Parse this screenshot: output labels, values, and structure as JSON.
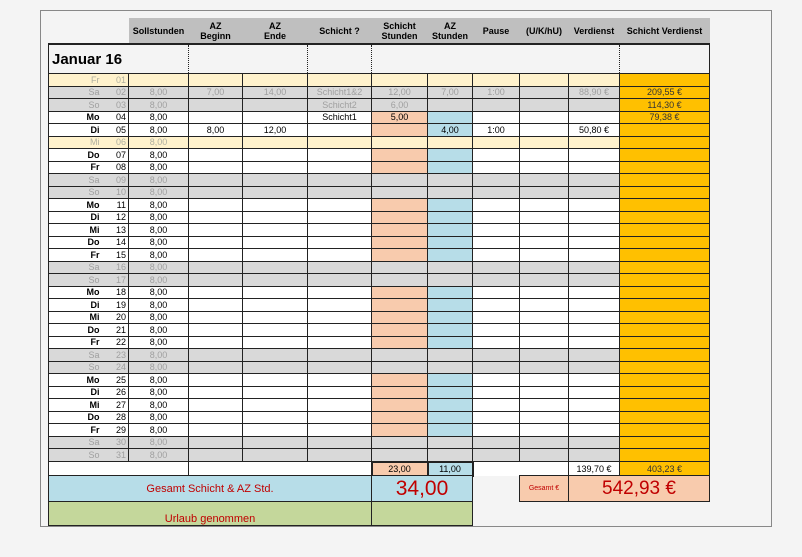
{
  "headers": [
    "",
    "Sollstunden",
    "AZ\nBeginn",
    "AZ\nEnde",
    "Schicht ?",
    "Schicht\nStunden",
    "AZ\nStunden",
    "Pause",
    "(U/K/hU)",
    "Verdienst",
    "Schicht Verdienst"
  ],
  "title": "Januar 16",
  "rows": [
    {
      "day": "Fr",
      "num": "01",
      "type": "hol",
      "soll": "",
      "beg": "",
      "end": "",
      "schicht": "",
      "ss": "",
      "az": "",
      "pause": "",
      "uk": "",
      "verd": "",
      "sv": ""
    },
    {
      "day": "Sa",
      "num": "02",
      "type": "we",
      "soll": "8,00",
      "beg": "7,00",
      "end": "14,00",
      "schicht": "Schicht1&2",
      "ss": "12,00",
      "az": "7,00",
      "pause": "1:00",
      "uk": "",
      "verd": "88,90 €",
      "sv": "209,55 €"
    },
    {
      "day": "So",
      "num": "03",
      "type": "we",
      "soll": "8,00",
      "beg": "",
      "end": "",
      "schicht": "Schicht2",
      "ss": "6,00",
      "az": "",
      "pause": "",
      "uk": "",
      "verd": "",
      "sv": "114,30 €"
    },
    {
      "day": "Mo",
      "num": "04",
      "type": "wd",
      "soll": "8,00",
      "beg": "",
      "end": "",
      "schicht": "Schicht1",
      "ss": "5,00",
      "az": "",
      "pause": "",
      "uk": "",
      "verd": "",
      "sv": "79,38 €"
    },
    {
      "day": "Di",
      "num": "05",
      "type": "wd",
      "soll": "8,00",
      "beg": "8,00",
      "end": "12,00",
      "schicht": "",
      "ss": "",
      "az": "4,00",
      "pause": "1:00",
      "uk": "",
      "verd": "50,80 €",
      "sv": ""
    },
    {
      "day": "Mi",
      "num": "06",
      "type": "hol",
      "soll": "8,00"
    },
    {
      "day": "Do",
      "num": "07",
      "type": "wd",
      "soll": "8,00"
    },
    {
      "day": "Fr",
      "num": "08",
      "type": "wd",
      "soll": "8,00"
    },
    {
      "day": "Sa",
      "num": "09",
      "type": "we",
      "soll": "8,00"
    },
    {
      "day": "So",
      "num": "10",
      "type": "we",
      "soll": "8,00"
    },
    {
      "day": "Mo",
      "num": "11",
      "type": "wd",
      "soll": "8,00"
    },
    {
      "day": "Di",
      "num": "12",
      "type": "wd",
      "soll": "8,00"
    },
    {
      "day": "Mi",
      "num": "13",
      "type": "wd",
      "soll": "8,00"
    },
    {
      "day": "Do",
      "num": "14",
      "type": "wd",
      "soll": "8,00"
    },
    {
      "day": "Fr",
      "num": "15",
      "type": "wd",
      "soll": "8,00"
    },
    {
      "day": "Sa",
      "num": "16",
      "type": "we",
      "soll": "8,00"
    },
    {
      "day": "So",
      "num": "17",
      "type": "we",
      "soll": "8,00"
    },
    {
      "day": "Mo",
      "num": "18",
      "type": "wd",
      "soll": "8,00"
    },
    {
      "day": "Di",
      "num": "19",
      "type": "wd",
      "soll": "8,00"
    },
    {
      "day": "Mi",
      "num": "20",
      "type": "wd",
      "soll": "8,00"
    },
    {
      "day": "Do",
      "num": "21",
      "type": "wd",
      "soll": "8,00"
    },
    {
      "day": "Fr",
      "num": "22",
      "type": "wd",
      "soll": "8,00"
    },
    {
      "day": "Sa",
      "num": "23",
      "type": "we",
      "soll": "8,00"
    },
    {
      "day": "So",
      "num": "24",
      "type": "we",
      "soll": "8,00"
    },
    {
      "day": "Mo",
      "num": "25",
      "type": "wd",
      "soll": "8,00"
    },
    {
      "day": "Di",
      "num": "26",
      "type": "wd",
      "soll": "8,00"
    },
    {
      "day": "Mi",
      "num": "27",
      "type": "wd",
      "soll": "8,00"
    },
    {
      "day": "Do",
      "num": "28",
      "type": "wd",
      "soll": "8,00"
    },
    {
      "day": "Fr",
      "num": "29",
      "type": "wd",
      "soll": "8,00"
    },
    {
      "day": "Sa",
      "num": "30",
      "type": "we",
      "soll": "8,00"
    },
    {
      "day": "So",
      "num": "31",
      "type": "we",
      "soll": "8,00"
    }
  ],
  "totals": {
    "ss": "23,00",
    "az": "11,00",
    "verd": "139,70 €",
    "sv": "403,23 €"
  },
  "summary": {
    "gesamt_label": "Gesamt Schicht & AZ Std.",
    "gesamt_value": "34,00",
    "urlaub_label": "Urlaub genommen",
    "gesamt_eur_label": "Gesamt €",
    "gesamt_eur_value": "542,93 €"
  }
}
